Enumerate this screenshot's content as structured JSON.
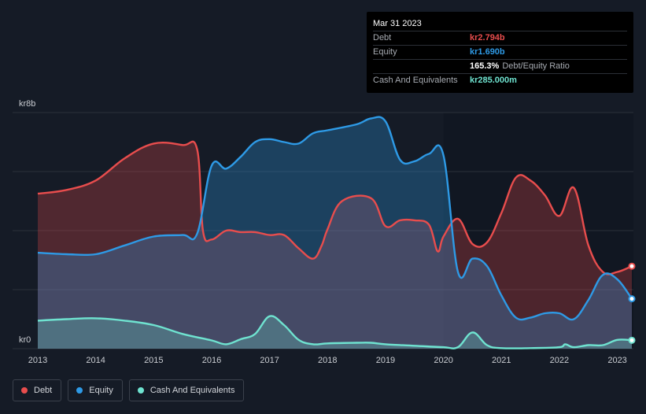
{
  "tooltip": {
    "date": "Mar 31 2023",
    "rows": [
      {
        "label": "Debt",
        "value": "kr2.794b",
        "suffix": "",
        "color": "#e84d4d"
      },
      {
        "label": "Equity",
        "value": "kr1.690b",
        "suffix": "",
        "color": "#2e9ae6"
      },
      {
        "label": "",
        "value": "165.3%",
        "suffix": "Debt/Equity Ratio",
        "color": "#ffffff"
      },
      {
        "label": "Cash And Equivalents",
        "value": "kr285.000m",
        "suffix": "",
        "color": "#6fe3d0"
      }
    ]
  },
  "legend": [
    {
      "label": "Debt",
      "color": "#e84d4d"
    },
    {
      "label": "Equity",
      "color": "#2e9ae6"
    },
    {
      "label": "Cash And Equivalents",
      "color": "#6fe3d0"
    }
  ],
  "chart_data": {
    "type": "area",
    "title": "",
    "ylabel": "",
    "y_top_label": "kr8b",
    "y_bottom_label": "kr0",
    "ylim": [
      0,
      8
    ],
    "xlim": [
      2013.0,
      2023.25
    ],
    "x_ticks": [
      2013,
      2014,
      2015,
      2016,
      2017,
      2018,
      2019,
      2020,
      2021,
      2022,
      2023
    ],
    "units": "billion kr",
    "series": [
      {
        "name": "Debt",
        "color": "#e84d4d",
        "points": [
          [
            2013.0,
            5.25
          ],
          [
            2013.5,
            5.38
          ],
          [
            2014.0,
            5.7
          ],
          [
            2014.5,
            6.45
          ],
          [
            2015.0,
            6.95
          ],
          [
            2015.5,
            6.9
          ],
          [
            2015.75,
            6.75
          ],
          [
            2015.85,
            4.0
          ],
          [
            2016.0,
            3.7
          ],
          [
            2016.25,
            4.0
          ],
          [
            2016.5,
            3.95
          ],
          [
            2016.75,
            3.95
          ],
          [
            2017.0,
            3.85
          ],
          [
            2017.25,
            3.85
          ],
          [
            2017.5,
            3.4
          ],
          [
            2017.75,
            3.05
          ],
          [
            2017.9,
            3.5
          ],
          [
            2018.0,
            4.05
          ],
          [
            2018.25,
            5.0
          ],
          [
            2018.75,
            5.1
          ],
          [
            2019.0,
            4.15
          ],
          [
            2019.25,
            4.35
          ],
          [
            2019.5,
            4.35
          ],
          [
            2019.75,
            4.2
          ],
          [
            2019.9,
            3.3
          ],
          [
            2020.0,
            3.8
          ],
          [
            2020.25,
            4.4
          ],
          [
            2020.5,
            3.55
          ],
          [
            2020.75,
            3.6
          ],
          [
            2021.0,
            4.6
          ],
          [
            2021.25,
            5.8
          ],
          [
            2021.5,
            5.7
          ],
          [
            2021.75,
            5.2
          ],
          [
            2022.0,
            4.5
          ],
          [
            2022.25,
            5.45
          ],
          [
            2022.5,
            3.5
          ],
          [
            2022.75,
            2.6
          ],
          [
            2023.0,
            2.6
          ],
          [
            2023.25,
            2.794
          ]
        ]
      },
      {
        "name": "Equity",
        "color": "#2e9ae6",
        "points": [
          [
            2013.0,
            3.25
          ],
          [
            2013.5,
            3.2
          ],
          [
            2014.0,
            3.2
          ],
          [
            2014.5,
            3.5
          ],
          [
            2015.0,
            3.8
          ],
          [
            2015.5,
            3.85
          ],
          [
            2015.75,
            3.9
          ],
          [
            2016.0,
            6.2
          ],
          [
            2016.25,
            6.1
          ],
          [
            2016.5,
            6.5
          ],
          [
            2016.75,
            7.0
          ],
          [
            2017.0,
            7.1
          ],
          [
            2017.25,
            7.0
          ],
          [
            2017.5,
            6.95
          ],
          [
            2017.75,
            7.3
          ],
          [
            2018.0,
            7.4
          ],
          [
            2018.5,
            7.6
          ],
          [
            2018.75,
            7.8
          ],
          [
            2019.0,
            7.7
          ],
          [
            2019.25,
            6.4
          ],
          [
            2019.5,
            6.35
          ],
          [
            2019.75,
            6.6
          ],
          [
            2020.0,
            6.55
          ],
          [
            2020.25,
            2.6
          ],
          [
            2020.5,
            3.05
          ],
          [
            2020.75,
            2.8
          ],
          [
            2021.0,
            1.8
          ],
          [
            2021.25,
            1.05
          ],
          [
            2021.5,
            1.05
          ],
          [
            2021.75,
            1.2
          ],
          [
            2022.0,
            1.2
          ],
          [
            2022.25,
            1.0
          ],
          [
            2022.5,
            1.65
          ],
          [
            2022.75,
            2.5
          ],
          [
            2023.0,
            2.35
          ],
          [
            2023.25,
            1.69
          ]
        ]
      },
      {
        "name": "Cash And Equivalents",
        "color": "#6fe3d0",
        "points": [
          [
            2013.0,
            0.95
          ],
          [
            2013.5,
            1.0
          ],
          [
            2014.0,
            1.03
          ],
          [
            2014.5,
            0.95
          ],
          [
            2015.0,
            0.8
          ],
          [
            2015.5,
            0.5
          ],
          [
            2016.0,
            0.28
          ],
          [
            2016.25,
            0.15
          ],
          [
            2016.5,
            0.32
          ],
          [
            2016.75,
            0.5
          ],
          [
            2017.0,
            1.1
          ],
          [
            2017.25,
            0.8
          ],
          [
            2017.5,
            0.3
          ],
          [
            2017.75,
            0.15
          ],
          [
            2018.0,
            0.18
          ],
          [
            2018.5,
            0.2
          ],
          [
            2018.75,
            0.2
          ],
          [
            2019.0,
            0.15
          ],
          [
            2019.5,
            0.1
          ],
          [
            2020.0,
            0.05
          ],
          [
            2020.25,
            0.05
          ],
          [
            2020.5,
            0.55
          ],
          [
            2020.75,
            0.12
          ],
          [
            2021.0,
            0.02
          ],
          [
            2021.5,
            0.02
          ],
          [
            2022.0,
            0.05
          ],
          [
            2022.1,
            0.15
          ],
          [
            2022.25,
            0.05
          ],
          [
            2022.5,
            0.12
          ],
          [
            2022.75,
            0.12
          ],
          [
            2023.0,
            0.3
          ],
          [
            2023.25,
            0.285
          ]
        ]
      }
    ]
  }
}
